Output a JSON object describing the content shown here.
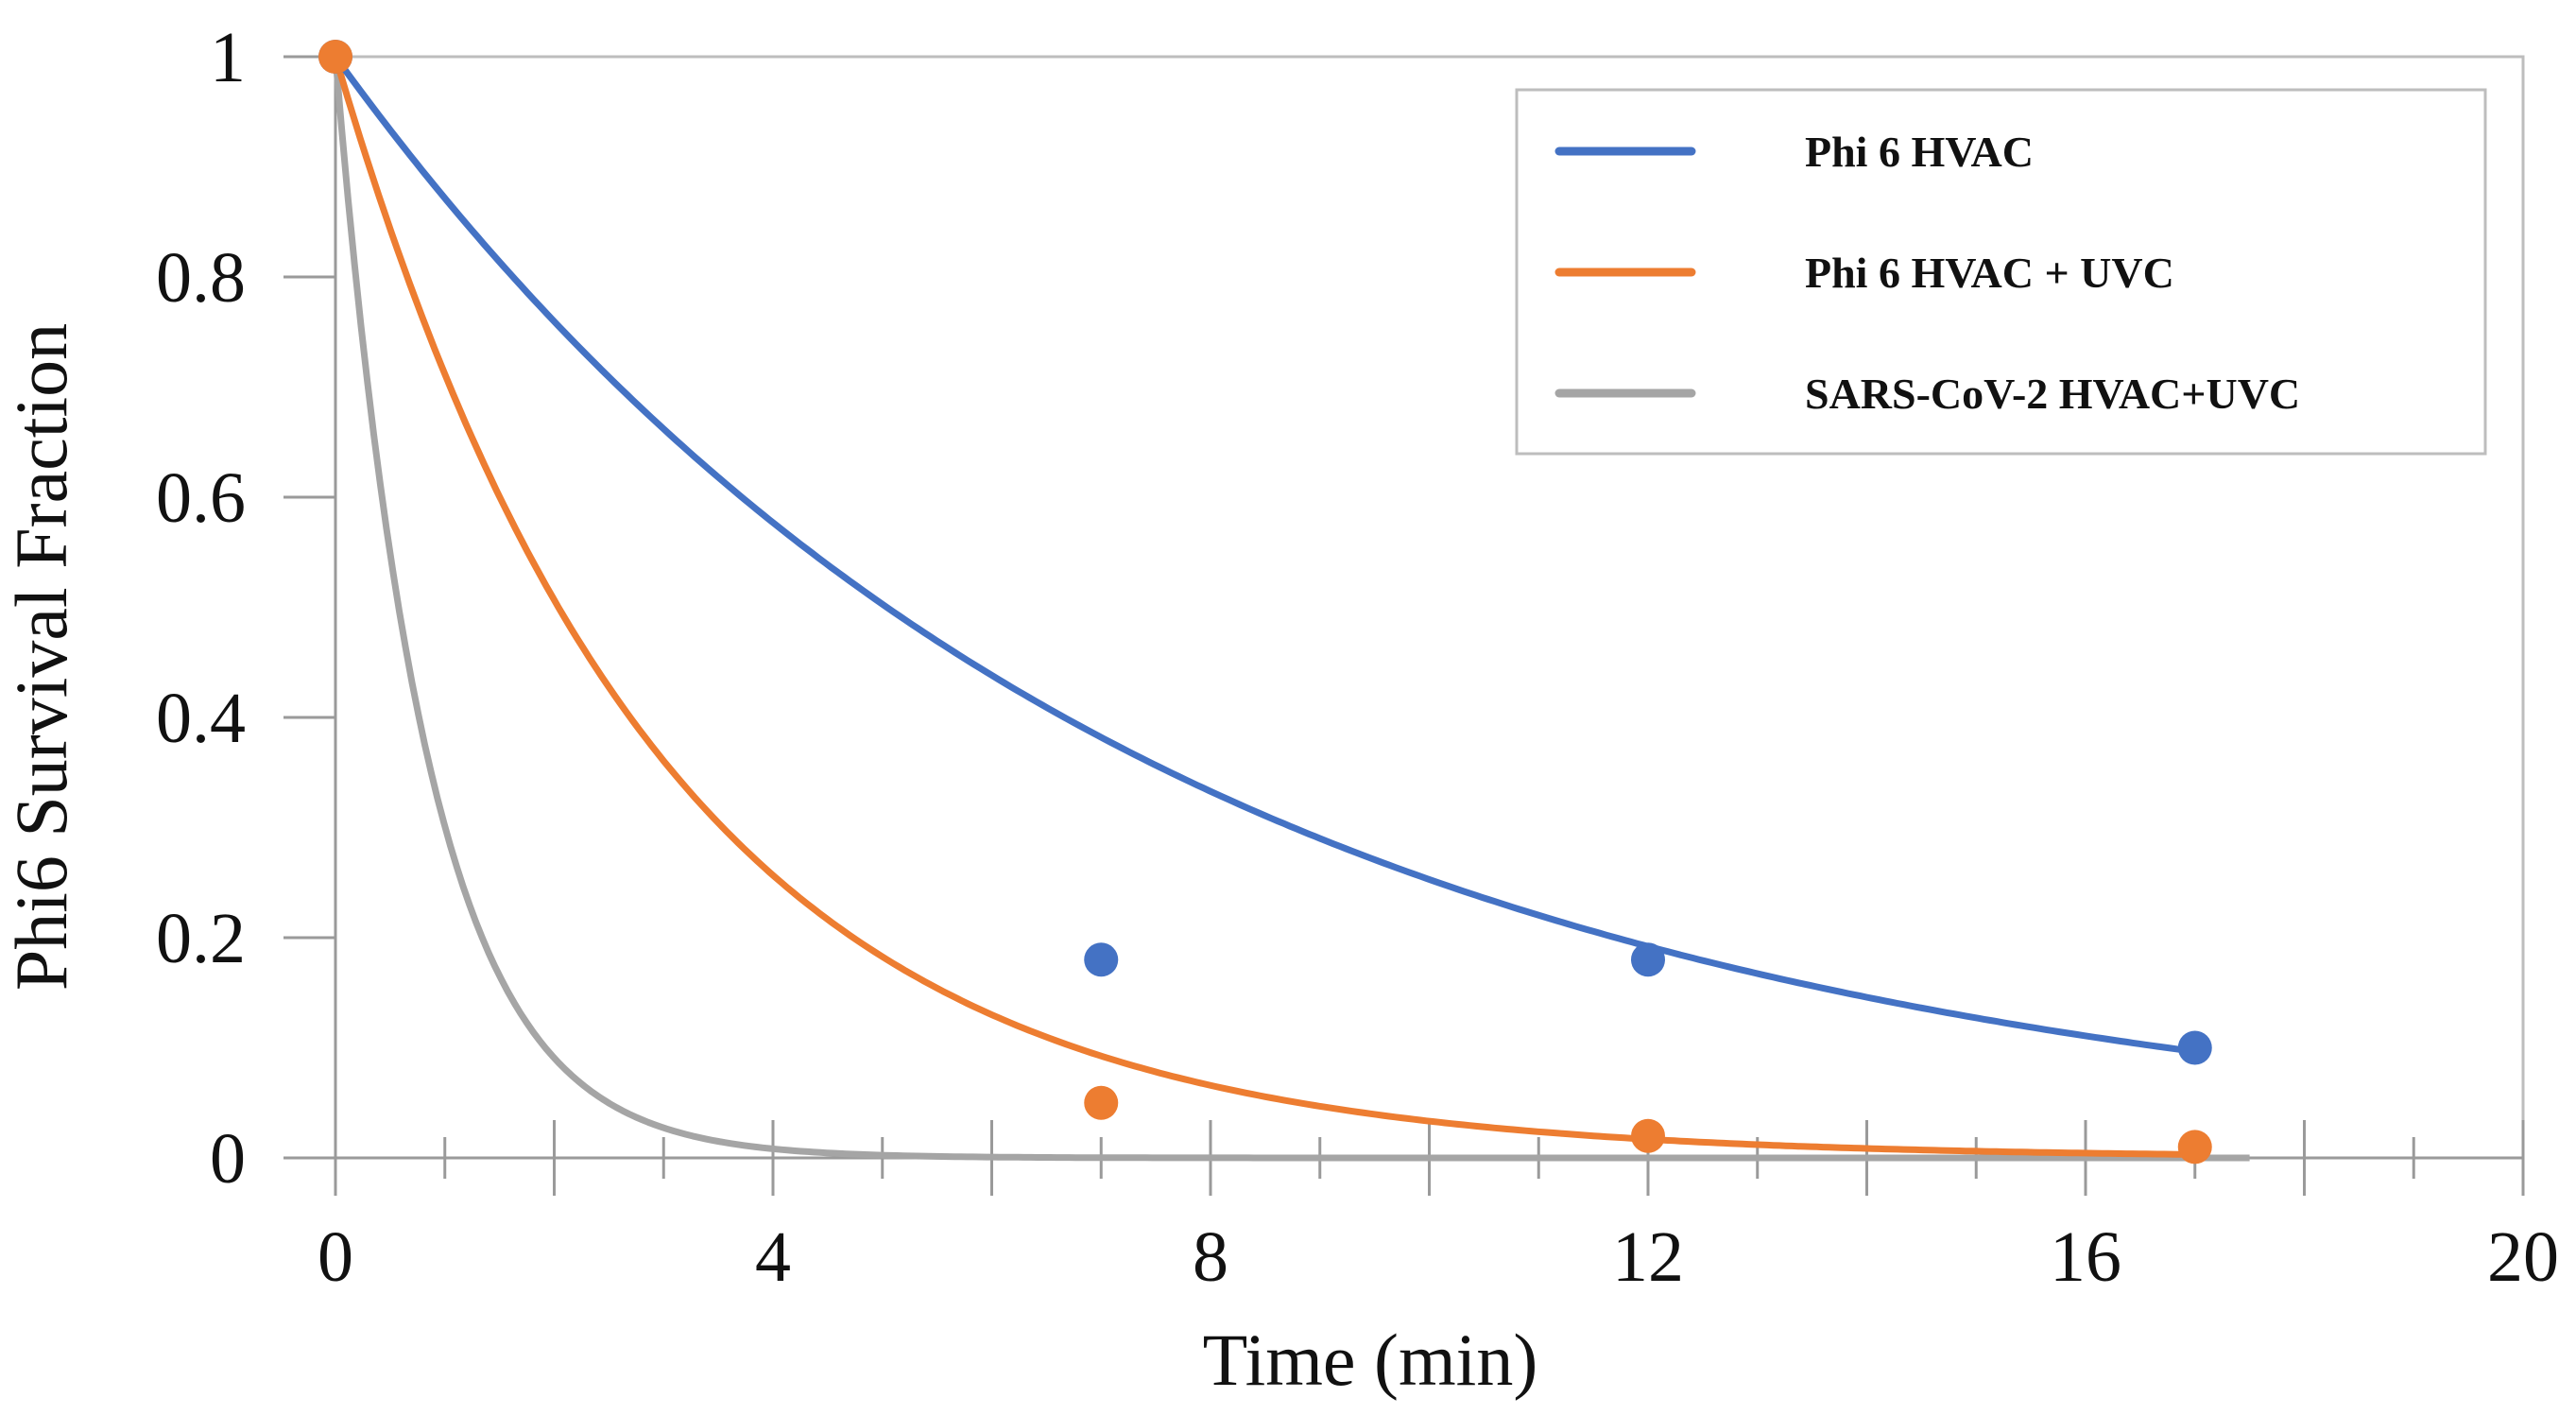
{
  "chart_data": {
    "type": "line",
    "title": "",
    "xlabel": "Time (min)",
    "ylabel": "Phi6 Survival Fraction",
    "xlim": [
      0,
      20
    ],
    "ylim": [
      0,
      1
    ],
    "x_tick_labels": [
      "0",
      "4",
      "8",
      "12",
      "16",
      "20"
    ],
    "y_tick_labels": [
      "0",
      "0.2",
      "0.4",
      "0.6",
      "0.8",
      "1"
    ],
    "grid": false,
    "legend_position": "top-right",
    "series": [
      {
        "name": "Phi 6 HVAC",
        "color": "#4472C4",
        "curve": {
          "model": "exponential_decay",
          "rate": 0.1375,
          "x_start": 0,
          "x_end": 17
        },
        "points": [
          {
            "x": 0,
            "y": 1.0
          },
          {
            "x": 7,
            "y": 0.18
          },
          {
            "x": 12,
            "y": 0.18
          },
          {
            "x": 17,
            "y": 0.1
          }
        ]
      },
      {
        "name": "Phi 6 HVAC + UVC",
        "color": "#ED7D31",
        "curve": {
          "model": "exponential_decay",
          "rate": 0.34,
          "x_start": 0,
          "x_end": 17
        },
        "points": [
          {
            "x": 0,
            "y": 1.0
          },
          {
            "x": 7,
            "y": 0.05
          },
          {
            "x": 12,
            "y": 0.02
          },
          {
            "x": 17,
            "y": 0.01
          }
        ]
      },
      {
        "name": "SARS-CoV-2 HVAC+UVC",
        "color": "#A5A5A5",
        "curve": {
          "model": "exponential_decay",
          "rate": 1.2,
          "x_start": 0,
          "x_end": 17.5
        },
        "points": []
      }
    ]
  }
}
